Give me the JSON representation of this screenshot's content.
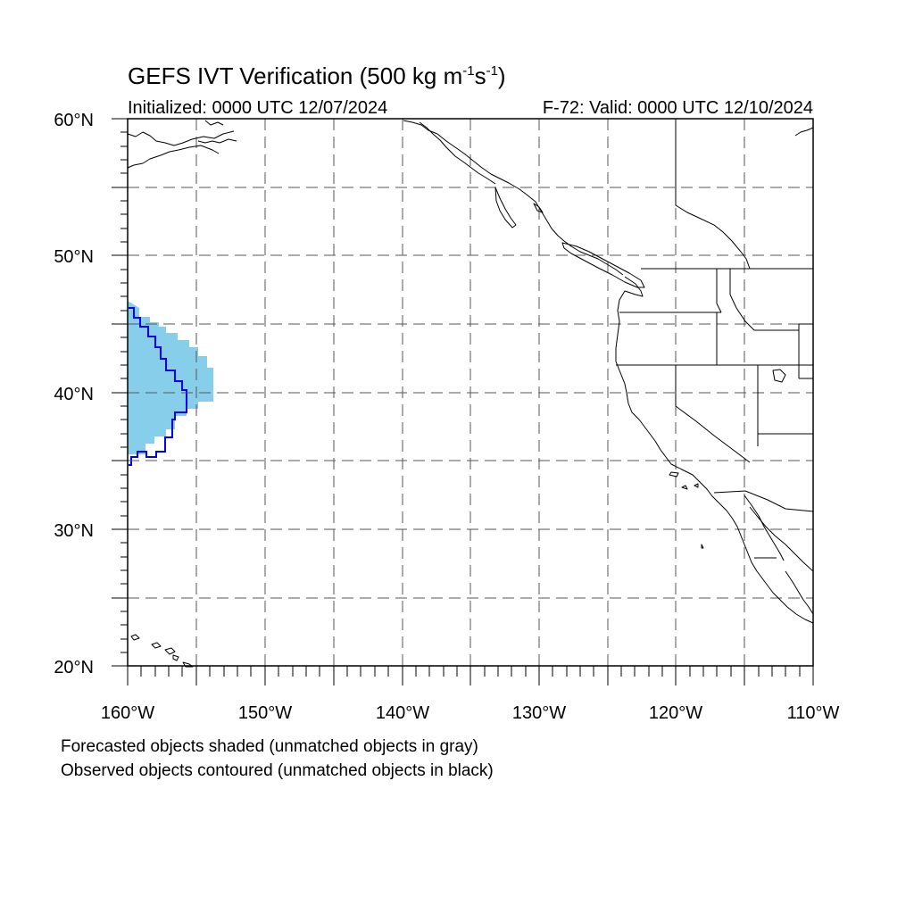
{
  "title": {
    "main": "GEFS IVT Verification (500 kg m",
    "exp1": "-1",
    "mid": "s",
    "exp2": "-1",
    "end": ")"
  },
  "subtitle_left": "Initialized: 0000 UTC 12/07/2024",
  "subtitle_right": "F-72: Valid: 0000 UTC 12/10/2024",
  "lat_labels": [
    "60°N",
    "50°N",
    "40°N",
    "30°N",
    "20°N"
  ],
  "lon_labels": [
    "160°W",
    "150°W",
    "140°W",
    "130°W",
    "120°W",
    "110°W"
  ],
  "captions": [
    "Forecasted objects shaded (unmatched objects in gray)",
    "Observed objects contoured (unmatched objects in black)"
  ],
  "colors": {
    "forecast_fill": "#87CEEB",
    "observed_contour": "#0000FF",
    "coastline": "#000000",
    "grid": "#555555"
  },
  "map": {
    "lon_range": [
      -160,
      -110
    ],
    "lat_range": [
      20,
      60
    ],
    "projection": "cylindrical equidistant",
    "grid_interval_deg": 5,
    "grid_style": "dashed"
  }
}
